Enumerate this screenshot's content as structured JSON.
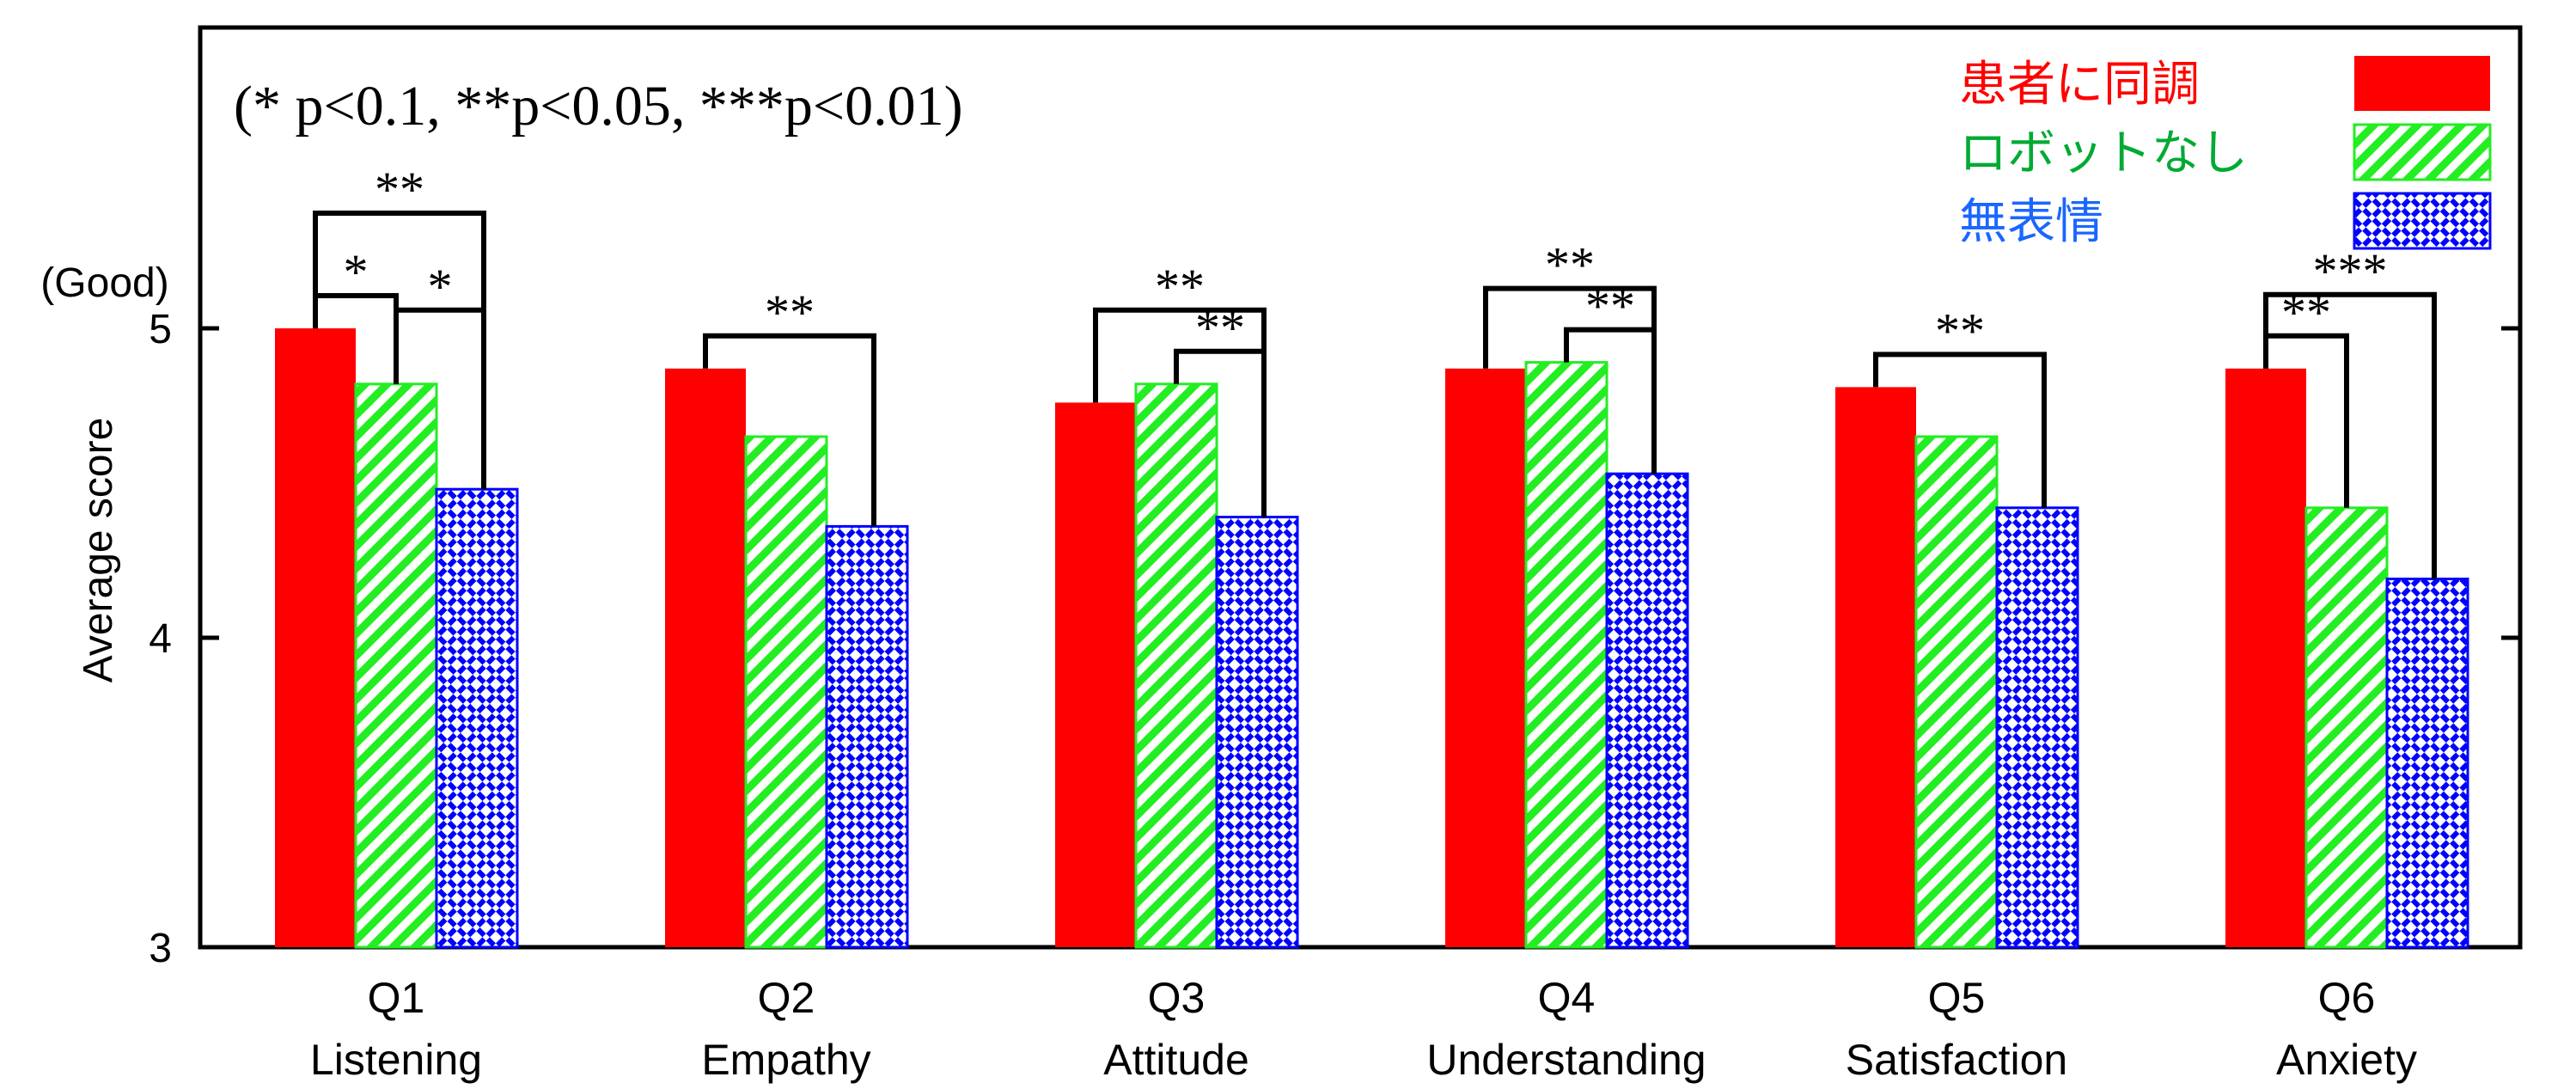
{
  "chart_data": {
    "type": "bar",
    "annotation": "(* p<0.1, **p<0.05, ***p<0.01)",
    "ylabel": "Average score",
    "ytop_label": "(Good)",
    "ylim": [
      3,
      6
    ],
    "yticks": [
      "3",
      "4",
      "5"
    ],
    "categories": [
      {
        "code": "Q1",
        "name": "Listening"
      },
      {
        "code": "Q2",
        "name": "Empathy"
      },
      {
        "code": "Q3",
        "name": "Attitude"
      },
      {
        "code": "Q4",
        "name": "Understanding"
      },
      {
        "code": "Q5",
        "name": "Satisfaction"
      },
      {
        "code": "Q6",
        "name": "Anxiety"
      }
    ],
    "series": [
      {
        "name": "患者に同調",
        "color": "#ff0000",
        "text_color": "#ff0000",
        "pattern": "solid",
        "values": [
          5.0,
          4.87,
          4.76,
          4.87,
          4.81,
          4.87
        ]
      },
      {
        "name": "ロボットなし",
        "color": "#22ee22",
        "text_color": "#00aa33",
        "pattern": "diagonal-stripes",
        "values": [
          4.82,
          4.65,
          4.82,
          4.89,
          4.65,
          4.42
        ]
      },
      {
        "name": "無表情",
        "color": "#0000ff",
        "text_color": "#1a66ff",
        "pattern": "crosshatch",
        "values": [
          4.48,
          4.36,
          4.39,
          4.53,
          4.42,
          4.19
        ]
      }
    ],
    "significance": [
      {
        "category": 0,
        "from": 0,
        "to": 2,
        "label": "**",
        "level": 3
      },
      {
        "category": 0,
        "from": 0,
        "to": 1,
        "label": "*",
        "level": 1
      },
      {
        "category": 0,
        "from": 1,
        "to": 2,
        "label": "*",
        "level": 2
      },
      {
        "category": 1,
        "from": 0,
        "to": 2,
        "label": "**",
        "level": 1
      },
      {
        "category": 2,
        "from": 0,
        "to": 2,
        "label": "**",
        "level": 2
      },
      {
        "category": 2,
        "from": 1,
        "to": 2,
        "label": "**",
        "level": 1
      },
      {
        "category": 3,
        "from": 0,
        "to": 2,
        "label": "**",
        "level": 2
      },
      {
        "category": 3,
        "from": 1,
        "to": 2,
        "label": "**",
        "level": 1
      },
      {
        "category": 4,
        "from": 0,
        "to": 2,
        "label": "**",
        "level": 1
      },
      {
        "category": 5,
        "from": 0,
        "to": 2,
        "label": "***",
        "level": 2
      },
      {
        "category": 5,
        "from": 0,
        "to": 1,
        "label": "**",
        "level": 1
      }
    ]
  }
}
